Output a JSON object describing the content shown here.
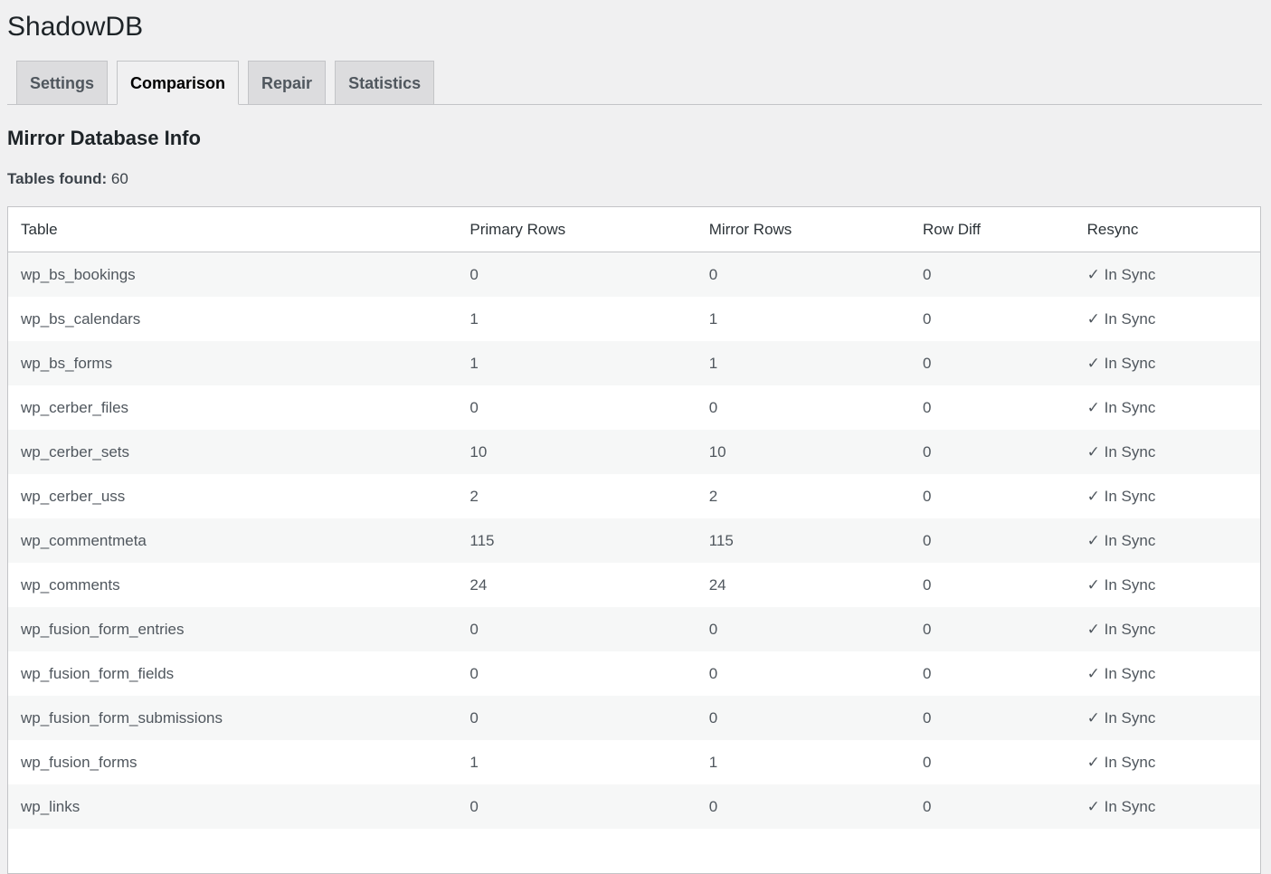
{
  "page_title": "ShadowDB",
  "tabs": [
    {
      "label": "Settings",
      "active": false
    },
    {
      "label": "Comparison",
      "active": true
    },
    {
      "label": "Repair",
      "active": false
    },
    {
      "label": "Statistics",
      "active": false
    }
  ],
  "section_title": "Mirror Database Info",
  "tables_found": {
    "label": "Tables found:",
    "value": "60"
  },
  "table": {
    "headers": [
      "Table",
      "Primary Rows",
      "Mirror Rows",
      "Row Diff",
      "Resync"
    ],
    "rows": [
      [
        "wp_bs_bookings",
        "0",
        "0",
        "0",
        "✓ In Sync"
      ],
      [
        "wp_bs_calendars",
        "1",
        "1",
        "0",
        "✓ In Sync"
      ],
      [
        "wp_bs_forms",
        "1",
        "1",
        "0",
        "✓ In Sync"
      ],
      [
        "wp_cerber_files",
        "0",
        "0",
        "0",
        "✓ In Sync"
      ],
      [
        "wp_cerber_sets",
        "10",
        "10",
        "0",
        "✓ In Sync"
      ],
      [
        "wp_cerber_uss",
        "2",
        "2",
        "0",
        "✓ In Sync"
      ],
      [
        "wp_commentmeta",
        "115",
        "115",
        "0",
        "✓ In Sync"
      ],
      [
        "wp_comments",
        "24",
        "24",
        "0",
        "✓ In Sync"
      ],
      [
        "wp_fusion_form_entries",
        "0",
        "0",
        "0",
        "✓ In Sync"
      ],
      [
        "wp_fusion_form_fields",
        "0",
        "0",
        "0",
        "✓ In Sync"
      ],
      [
        "wp_fusion_form_submissions",
        "0",
        "0",
        "0",
        "✓ In Sync"
      ],
      [
        "wp_fusion_forms",
        "1",
        "1",
        "0",
        "✓ In Sync"
      ],
      [
        "wp_links",
        "0",
        "0",
        "0",
        "✓ In Sync"
      ],
      [
        "",
        "",
        "",
        "",
        ""
      ]
    ]
  }
}
